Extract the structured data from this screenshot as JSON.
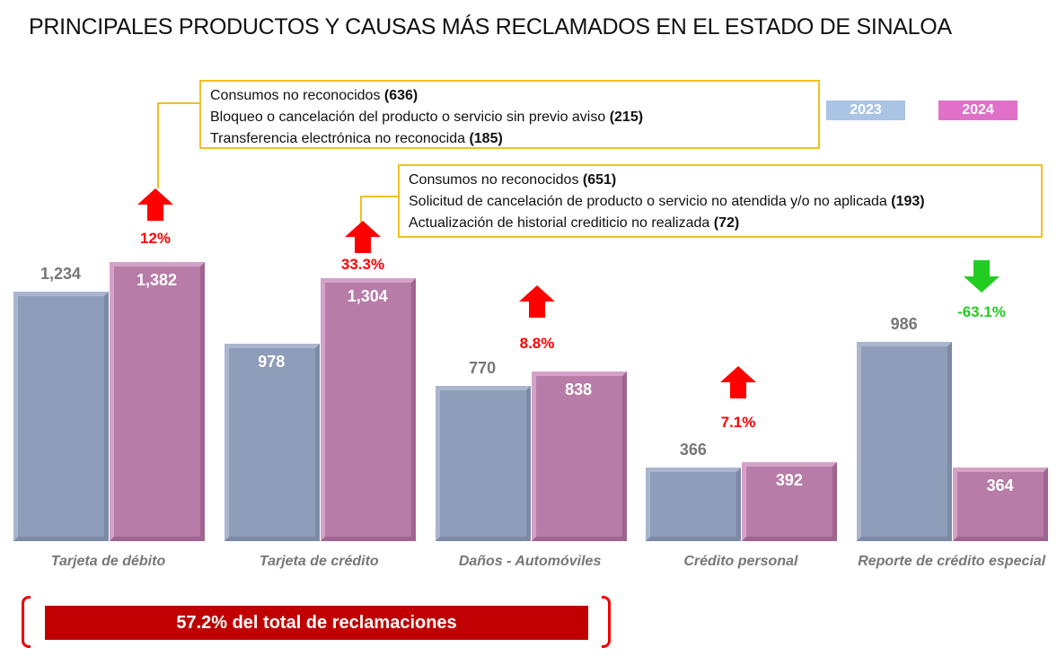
{
  "title": "PRINCIPALES PRODUCTOS Y CAUSAS MÁS RECLAMADOS EN EL ESTADO DE SINALOA",
  "chart_data": {
    "type": "bar",
    "categories": [
      "Tarjeta de débito",
      "Tarjeta de crédito",
      "Daños - Automóviles",
      "Crédito personal",
      "Reporte de crédito especial"
    ],
    "series": [
      {
        "name": "2023",
        "values": [
          1234,
          978,
          770,
          366,
          986
        ],
        "labels": [
          "1,234",
          "978",
          "770",
          "366",
          "986"
        ],
        "color": "#8e9dba",
        "legend_color": "#a9c4e4"
      },
      {
        "name": "2024",
        "values": [
          1382,
          1304,
          838,
          392,
          364
        ],
        "labels": [
          "1,382",
          "1,304",
          "838",
          "392",
          "364"
        ],
        "color": "#b77ca8",
        "legend_color": "#e070c8"
      }
    ],
    "changes": [
      {
        "label": "12%",
        "direction": "up",
        "color": "#ff0000"
      },
      {
        "label": "33.3%",
        "direction": "up",
        "color": "#ff0000"
      },
      {
        "label": "8.8%",
        "direction": "up",
        "color": "#ff0000"
      },
      {
        "label": "7.1%",
        "direction": "up",
        "color": "#ff0000"
      },
      {
        "label": "-63.1%",
        "direction": "down",
        "color": "#22cc22"
      }
    ],
    "ylim": [
      0,
      1400
    ],
    "legend": "top-right"
  },
  "callouts": [
    {
      "lines": [
        {
          "text": "Consumos no reconocidos ",
          "count": "(636)"
        },
        {
          "text": "Bloqueo o cancelación del producto o servicio sin previo aviso ",
          "count": "(215)"
        },
        {
          "text": "Transferencia electrónica no reconocida ",
          "count": "(185)"
        }
      ]
    },
    {
      "lines": [
        {
          "text": "Consumos no reconocidos ",
          "count": "(651)"
        },
        {
          "text": "Solicitud de cancelación de producto o servicio no atendida y/o no aplicada ",
          "count": "(193)"
        },
        {
          "text": "Actualización de historial crediticio no realizada ",
          "count": "(72)"
        }
      ]
    }
  ],
  "footer": "57.2% del total de reclamaciones"
}
